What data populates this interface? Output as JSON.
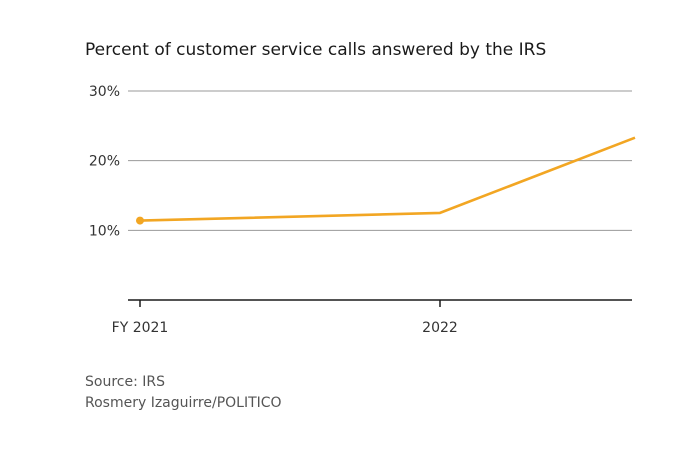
{
  "chart_data": {
    "type": "line",
    "title": "Percent of customer service calls answered by the IRS",
    "xlabel": "",
    "ylabel": "",
    "ylim": [
      0,
      30
    ],
    "y_ticks": [
      {
        "value": 10,
        "label": "10%"
      },
      {
        "value": 20,
        "label": "20%"
      },
      {
        "value": 30,
        "label": "30%"
      }
    ],
    "x_ticks": [
      {
        "value": 0,
        "label": "FY 2021"
      },
      {
        "value": 1,
        "label": "2022"
      }
    ],
    "xlim": [
      0,
      1.65
    ],
    "grid": true,
    "series": [
      {
        "color": "#F2A623",
        "points": [
          {
            "x": 0,
            "y": 11.4
          },
          {
            "x": 1,
            "y": 12.5
          },
          {
            "x": 1.65,
            "y": 23.3
          }
        ]
      }
    ]
  },
  "footer": {
    "source": "Source: IRS",
    "credit": "Rosmery Izaguirre/POLITICO"
  }
}
